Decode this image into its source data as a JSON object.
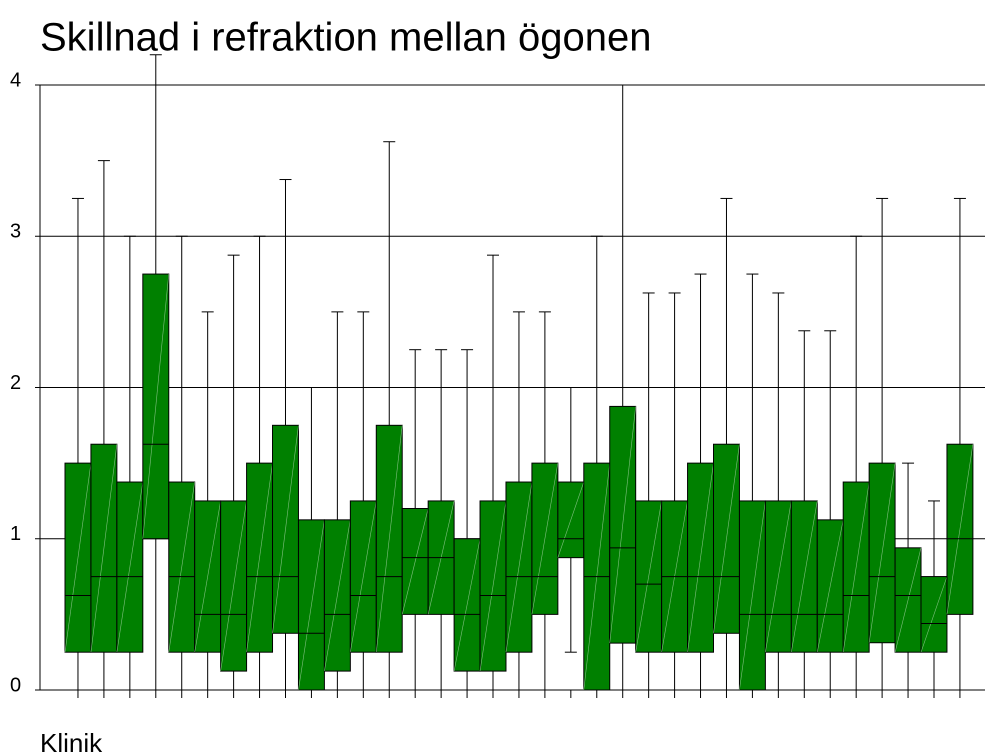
{
  "chart_data": {
    "type": "box",
    "title": "Skillnad i refraktion mellan ögonen",
    "x_label": "Klinik",
    "categories": [
      null,
      null,
      null,
      null,
      null,
      null,
      null,
      null,
      null,
      null,
      null,
      null,
      null,
      null,
      null,
      null,
      null,
      null,
      null,
      null,
      null,
      null,
      null,
      null,
      null,
      null,
      null,
      null,
      null,
      null,
      null,
      null,
      null,
      null,
      null
    ],
    "color": "#008000",
    "whislo": [
      0,
      0,
      0,
      0,
      0,
      0,
      0,
      0,
      0,
      0,
      0,
      0,
      0,
      0,
      0,
      0,
      0,
      0,
      0,
      0.25,
      0,
      0,
      0,
      0,
      0,
      0,
      0,
      0,
      0,
      0,
      0,
      0,
      0,
      0,
      0
    ],
    "q1": [
      0.25,
      0.25,
      0.25,
      1,
      0.25,
      0.25,
      0.125,
      0.25,
      0.375,
      0,
      0.125,
      0.25,
      0.25,
      0.5,
      0.5,
      0.125,
      0.125,
      0.25,
      0.5,
      0.875,
      0,
      0.31,
      0.25,
      0.25,
      0.25,
      0.375,
      0,
      0.25,
      0.25,
      0.25,
      0.25,
      0.3125,
      0.25,
      0.25,
      0.5
    ],
    "med": [
      0.625,
      0.75,
      0.75,
      1.625,
      0.75,
      0.5,
      0.5,
      0.75,
      0.75,
      0.375,
      0.5,
      0.625,
      0.75,
      0.875,
      0.875,
      0.5,
      0.625,
      0.75,
      0.75,
      1,
      0.75,
      0.94,
      0.7,
      0.75,
      0.75,
      0.75,
      0.5,
      0.5,
      0.5,
      0.5,
      0.625,
      0.75,
      0.625,
      0.44,
      1
    ],
    "q3": [
      1.5,
      1.625,
      1.375,
      2.75,
      1.375,
      1.25,
      1.25,
      1.5,
      1.75,
      1.125,
      1.125,
      1.25,
      1.75,
      1.2,
      1.25,
      1,
      1.25,
      1.375,
      1.5,
      1.375,
      1.5,
      1.875,
      1.25,
      1.25,
      1.5,
      1.625,
      1.25,
      1.25,
      1.25,
      1.125,
      1.375,
      1.5,
      0.94,
      0.75,
      1.625
    ],
    "whishi": [
      3.25,
      3.5,
      3,
      4.2,
      3,
      2.5,
      2.875,
      3,
      3.375,
      2,
      2.5,
      2.5,
      3.625,
      2.25,
      2.25,
      2.25,
      2.875,
      2.5,
      2.5,
      2,
      3,
      4,
      2.625,
      2.625,
      2.75,
      3.25,
      2.75,
      2.625,
      2.375,
      2.375,
      3,
      3.25,
      1.5,
      1.25,
      3.25
    ],
    "ylim": [
      0,
      4
    ],
    "yticks": [
      0,
      1,
      2,
      3,
      4
    ],
    "grid": true
  }
}
